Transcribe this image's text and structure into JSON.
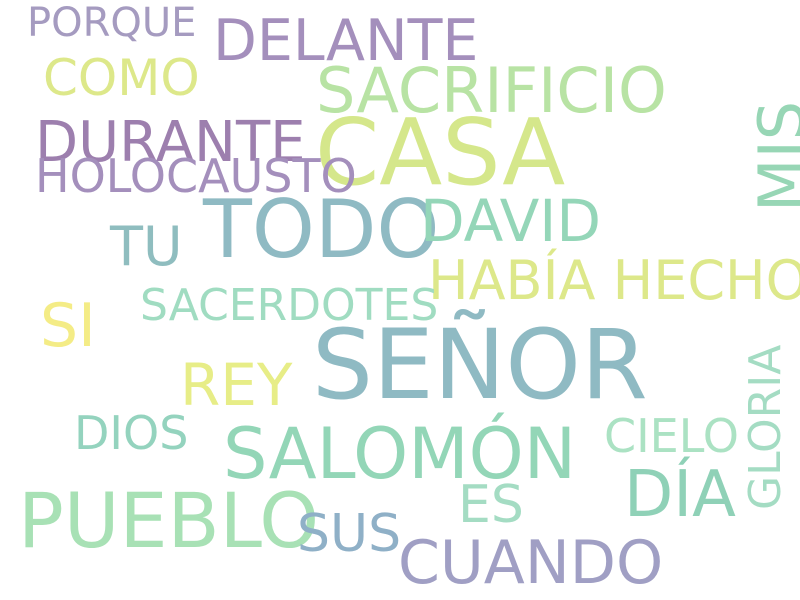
{
  "words": {
    "porque": "PORQUE",
    "delante": "DELANTE",
    "como": "COMO",
    "sacrificio": "SACRIFICIO",
    "casa": "CASA",
    "durante": "DURANTE",
    "holocausto": "HOLOCAUSTO",
    "mis": "MIS",
    "todo": "TODO",
    "david": "DAVID",
    "tu": "TU",
    "habia_hecho": "HABÍA HECHO",
    "sacerdotes": "SACERDOTES",
    "si": "SI",
    "senor": "SEÑOR",
    "rey": "REY",
    "gloria": "GLORIA",
    "cielo": "CIELO",
    "dios": "DIOS",
    "salomon": "SALOMÓN",
    "dia": "DÍA",
    "es": "ES",
    "pueblo": "PUEBLO",
    "sus": "SUS",
    "cuando": "CUANDO"
  }
}
